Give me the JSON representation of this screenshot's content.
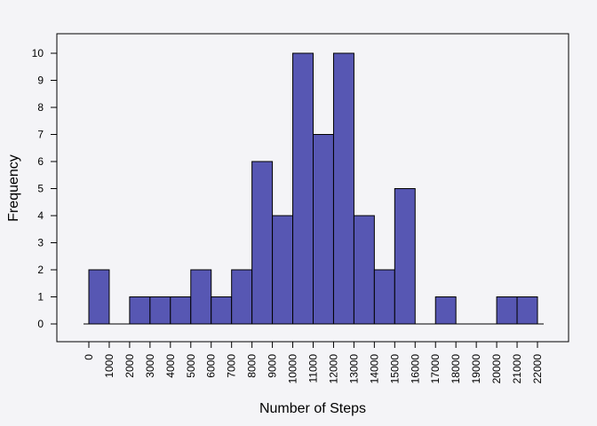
{
  "chart_data": {
    "type": "bar",
    "title": "",
    "xlabel": "Number of Steps",
    "ylabel": "Frequency",
    "bin_edges": [
      0,
      1000,
      2000,
      3000,
      4000,
      5000,
      6000,
      7000,
      8000,
      9000,
      10000,
      11000,
      12000,
      13000,
      14000,
      15000,
      16000,
      17000,
      18000,
      19000,
      20000,
      21000,
      22000
    ],
    "values": [
      2,
      0,
      1,
      1,
      1,
      2,
      1,
      2,
      6,
      4,
      10,
      7,
      10,
      4,
      2,
      5,
      0,
      1,
      0,
      0,
      1,
      1
    ],
    "x_ticks": [
      "0",
      "1000",
      "2000",
      "3000",
      "4000",
      "5000",
      "6000",
      "7000",
      "8000",
      "9000",
      "10000",
      "11000",
      "12000",
      "13000",
      "14000",
      "15000",
      "16000",
      "17000",
      "18000",
      "19000",
      "20000",
      "21000",
      "22000"
    ],
    "y_ticks": [
      "0",
      "1",
      "2",
      "3",
      "4",
      "5",
      "6",
      "7",
      "8",
      "9",
      "10"
    ],
    "xlim": [
      0,
      22000
    ],
    "ylim": [
      0,
      10
    ],
    "grid": false,
    "colors": {
      "bar_fill": "#5757b3",
      "bar_stroke": "#000000",
      "background": "#f4f4f7"
    }
  }
}
